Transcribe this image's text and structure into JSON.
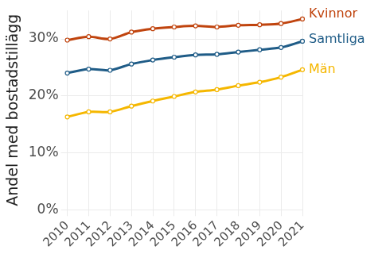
{
  "chart_data": {
    "type": "line",
    "y_label": "Andel med bostadstillägg",
    "categories": [
      "2010",
      "2011",
      "2012",
      "2013",
      "2014",
      "2015",
      "2016",
      "2017",
      "2018",
      "2019",
      "2020",
      "2021"
    ],
    "series": [
      {
        "name": "Kvinnor",
        "color": "#c0440e",
        "marker": "circle",
        "values": [
          29.8,
          30.4,
          30.0,
          31.2,
          31.8,
          32.1,
          32.3,
          32.1,
          32.4,
          32.5,
          32.7,
          33.5
        ]
      },
      {
        "name": "Samtliga",
        "color": "#1f5c87",
        "marker": "circle",
        "values": [
          24.0,
          24.7,
          24.5,
          25.6,
          26.3,
          26.8,
          27.2,
          27.3,
          27.7,
          28.1,
          28.5,
          29.6
        ]
      },
      {
        "name": "Män",
        "color": "#f5b700",
        "marker": "circle",
        "values": [
          16.3,
          17.2,
          17.2,
          18.2,
          19.1,
          19.9,
          20.7,
          21.1,
          21.8,
          22.4,
          23.3,
          24.6
        ]
      }
    ],
    "ylim": [
      0,
      35
    ],
    "yticks": [
      {
        "value": 0,
        "label": "0%"
      },
      {
        "value": 10,
        "label": "10%"
      },
      {
        "value": 20,
        "label": "20%"
      },
      {
        "value": 30,
        "label": "30%"
      }
    ],
    "grid": true
  }
}
